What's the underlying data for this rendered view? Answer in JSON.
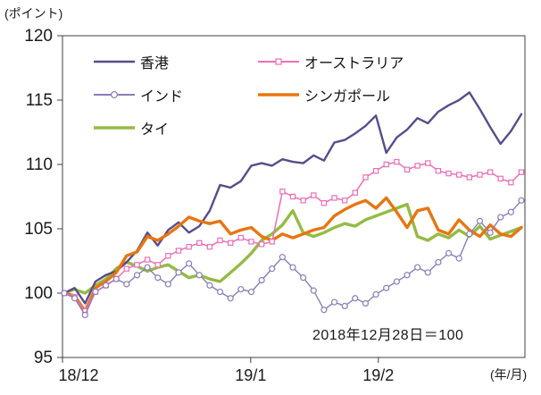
{
  "chart_data": {
    "type": "line",
    "title": "",
    "y_axis_unit": "(ポイント)",
    "x_axis_unit": "(年/月)",
    "annotation": "2018年12月28日＝100",
    "ylim": [
      95,
      120
    ],
    "yticks": [
      95,
      100,
      105,
      110,
      115,
      120
    ],
    "xticks": [
      {
        "label": "18/12",
        "pos": 0.0,
        "label_dx": 18
      },
      {
        "label": "19/1",
        "pos": 0.407,
        "label_dx": 0
      },
      {
        "label": "19/2",
        "pos": 0.683,
        "label_dx": 0
      }
    ],
    "grid": false,
    "legend_position": "top-left-inside",
    "axis_color": "#404040",
    "text_color": "#1a1a1a",
    "series": [
      {
        "key": "hong-kong",
        "name": "香港",
        "color": "#574D8C",
        "width": 2.4,
        "marker": "none",
        "z": 2,
        "values": [
          100,
          100.4,
          99.2,
          100.9,
          101.4,
          101.7,
          102.4,
          103.3,
          104.7,
          103.7,
          104.9,
          105.5,
          104.7,
          105.2,
          106.4,
          108.4,
          108.2,
          108.7,
          109.9,
          110.1,
          109.9,
          110.4,
          110.2,
          110.1,
          110.7,
          110.3,
          111.7,
          111.9,
          112.4,
          113.0,
          113.8,
          110.9,
          112.1,
          112.7,
          113.6,
          113.2,
          114.1,
          114.6,
          115.0,
          115.6,
          114.3,
          112.9,
          111.6,
          112.6,
          113.9
        ]
      },
      {
        "key": "australia",
        "name": "オーストラリア",
        "color": "#EC6FB8",
        "width": 1.5,
        "marker": "square",
        "z": 4,
        "values": [
          100,
          99.7,
          98.6,
          100.1,
          100.6,
          101.1,
          101.9,
          102.2,
          102.6,
          102.2,
          102.9,
          103.3,
          103.6,
          103.9,
          103.6,
          104.1,
          103.9,
          104.3,
          104.0,
          103.8,
          104.0,
          107.9,
          107.5,
          107.2,
          107.6,
          107.0,
          107.4,
          107.2,
          107.8,
          109.0,
          109.5,
          110.0,
          110.2,
          109.6,
          109.9,
          110.1,
          109.5,
          109.3,
          109.2,
          109.0,
          109.2,
          109.4,
          108.9,
          108.6,
          109.4
        ]
      },
      {
        "key": "india",
        "name": "インド",
        "color": "#8B7CB8",
        "width": 1.4,
        "marker": "circle",
        "z": 5,
        "values": [
          100,
          99.6,
          98.3,
          100.1,
          100.6,
          101.1,
          100.7,
          101.4,
          102.0,
          101.2,
          100.7,
          101.6,
          102.3,
          101.4,
          100.6,
          100.1,
          99.6,
          100.3,
          100.1,
          101.0,
          101.9,
          102.8,
          102.0,
          101.2,
          100.2,
          98.7,
          99.3,
          99.0,
          99.6,
          99.2,
          99.9,
          100.4,
          100.9,
          101.4,
          102.0,
          101.6,
          102.4,
          103.1,
          102.7,
          104.6,
          105.6,
          104.7,
          105.9,
          106.3,
          107.2
        ]
      },
      {
        "key": "singapore",
        "name": "シンガポール",
        "color": "#E87511",
        "width": 3.4,
        "marker": "none",
        "z": 3,
        "values": [
          100,
          99.8,
          98.6,
          100.4,
          100.9,
          101.6,
          102.9,
          103.2,
          104.4,
          104.1,
          104.6,
          105.2,
          105.9,
          105.6,
          105.4,
          105.6,
          104.6,
          104.9,
          105.1,
          104.4,
          104.1,
          104.6,
          104.3,
          104.6,
          104.9,
          105.1,
          106.0,
          106.5,
          106.9,
          107.2,
          106.6,
          107.4,
          106.3,
          105.1,
          106.4,
          106.6,
          104.9,
          104.6,
          105.7,
          104.9,
          104.4,
          105.3,
          104.6,
          104.4,
          105.1
        ]
      },
      {
        "key": "thailand",
        "name": "タイ",
        "color": "#94BB44",
        "width": 3.4,
        "marker": "none",
        "z": 1,
        "values": [
          100,
          100.3,
          100.0,
          100.6,
          101.1,
          101.9,
          102.4,
          102.1,
          101.7,
          102.0,
          102.2,
          101.7,
          101.2,
          101.4,
          101.1,
          100.9,
          101.6,
          102.3,
          103.1,
          104.1,
          104.6,
          105.3,
          106.4,
          104.7,
          104.4,
          104.7,
          105.1,
          105.4,
          105.2,
          105.7,
          106.0,
          106.3,
          106.6,
          106.9,
          104.4,
          104.1,
          104.6,
          104.3,
          104.9,
          104.4,
          105.2,
          104.2,
          104.5,
          104.8,
          105.1
        ]
      }
    ]
  }
}
